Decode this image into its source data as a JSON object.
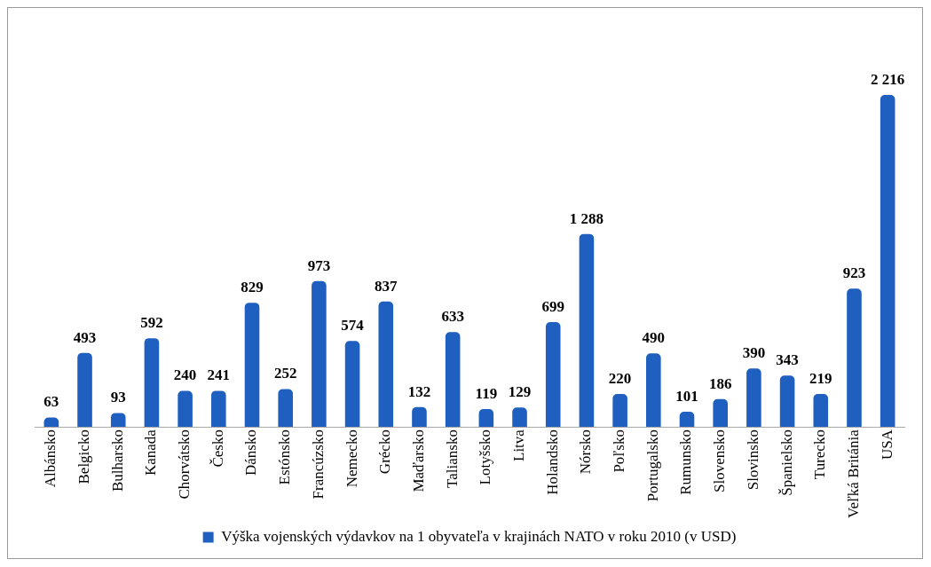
{
  "chart_data": {
    "type": "bar",
    "categories": [
      "Albánsko",
      "Belgicko",
      "Bulharsko",
      "Kanada",
      "Chorvátsko",
      "Česko",
      "Dánsko",
      "Estónsko",
      "Francúzsko",
      "Nemecko",
      "Grécko",
      "Maďarsko",
      "Taliansko",
      "Lotyšsko",
      "Litva",
      "Holandsko",
      "Nórsko",
      "Poľsko",
      "Portugalsko",
      "Rumunsko",
      "Slovensko",
      "Slovinsko",
      "Španielsko",
      "Turecko",
      "Veľká Británia",
      "USA"
    ],
    "series": [
      {
        "name": "Výška vojenských výdavkov na 1 obyvateľa v krajinách NATO v roku 2010 (v USD)",
        "color": "#1f5fbf",
        "values": [
          63,
          493,
          93,
          592,
          240,
          241,
          829,
          252,
          973,
          574,
          837,
          132,
          633,
          119,
          129,
          699,
          1288,
          220,
          490,
          101,
          186,
          390,
          343,
          219,
          923,
          2216
        ],
        "value_labels": [
          "63",
          "493",
          "93",
          "592",
          "240",
          "241",
          "829",
          "252",
          "973",
          "574",
          "837",
          "132",
          "633",
          "119",
          "129",
          "699",
          "1 288",
          "220",
          "490",
          "101",
          "186",
          "390",
          "343",
          "219",
          "923",
          "2 216"
        ]
      }
    ],
    "legend": "bottom",
    "tick_labels": "x",
    "grid": false
  }
}
